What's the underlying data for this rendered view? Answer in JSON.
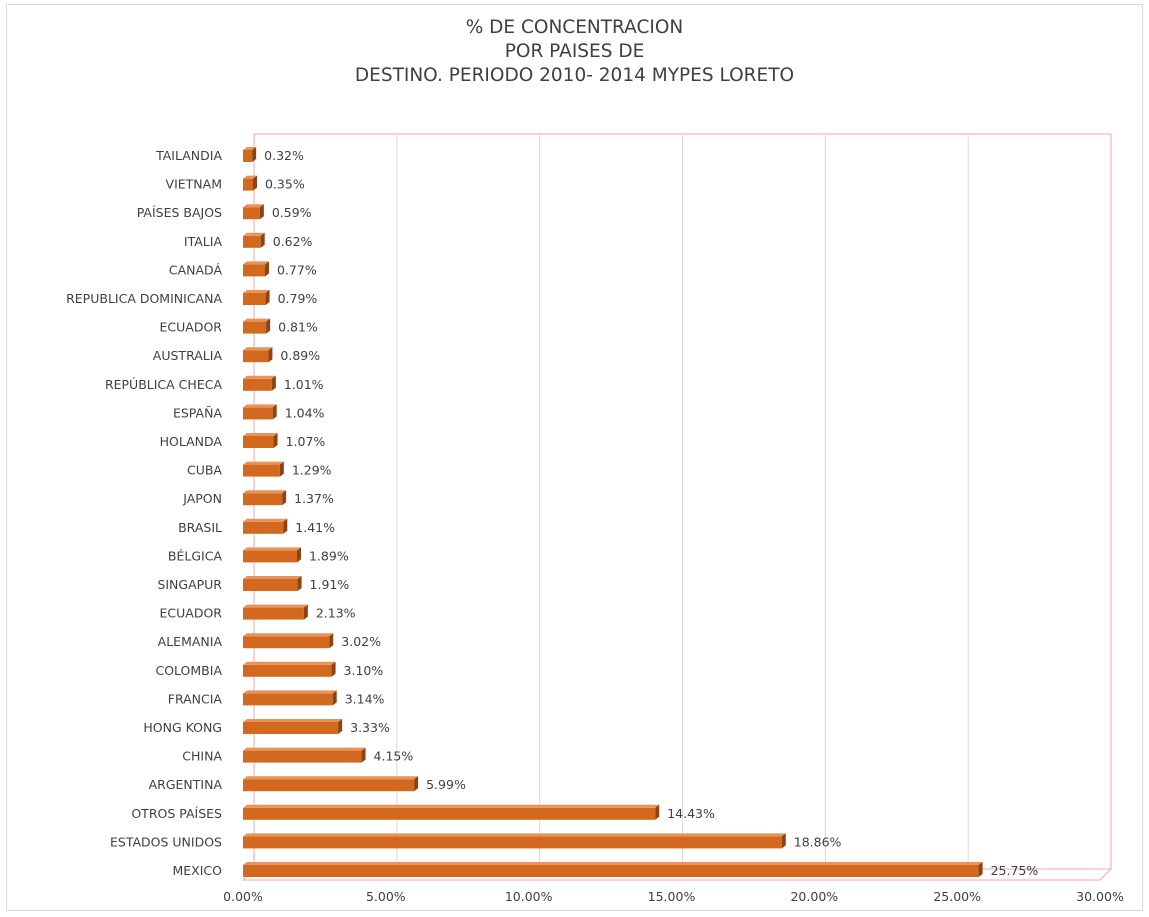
{
  "title_lines": [
    "% DE CONCENTRACION",
    "POR PAISES DE",
    "DESTINO. PERIODO 2010- 2014 MYPES LORETO"
  ],
  "chart_data": {
    "type": "bar",
    "orientation": "horizontal",
    "style": "3d-bar",
    "title": "% DE CONCENTRACION POR PAISES DE DESTINO. PERIODO 2010- 2014 MYPES LORETO",
    "categories": [
      "TAILANDIA",
      "VIETNAM",
      "PAÍSES BAJOS",
      "ITALIA",
      "CANADÁ",
      "REPUBLICA DOMINICANA",
      "ECUADOR",
      "AUSTRALIA",
      "REPÚBLICA CHECA",
      "ESPAÑA",
      "HOLANDA",
      "CUBA",
      "JAPON",
      "BRASIL",
      "BÉLGICA",
      "SINGAPUR",
      "ECUADOR",
      "ALEMANIA",
      "COLOMBIA",
      "FRANCIA",
      "HONG KONG",
      "CHINA",
      "ARGENTINA",
      "OTROS  PAÍSES",
      "ESTADOS UNIDOS",
      "MEXICO"
    ],
    "values": [
      0.32,
      0.35,
      0.59,
      0.62,
      0.77,
      0.79,
      0.81,
      0.89,
      1.01,
      1.04,
      1.07,
      1.29,
      1.37,
      1.41,
      1.89,
      1.91,
      2.13,
      3.02,
      3.1,
      3.14,
      3.33,
      4.15,
      5.99,
      14.43,
      18.86,
      25.75
    ],
    "data_labels": [
      "0.32%",
      "0.35%",
      "0.59%",
      "0.62%",
      "0.77%",
      "0.79%",
      "0.81%",
      "0.89%",
      "1.01%",
      "1.04%",
      "1.07%",
      "1.29%",
      "1.37%",
      "1.41%",
      "1.89%",
      "1.91%",
      "2.13%",
      "3.02%",
      "3.10%",
      "3.14%",
      "3.33%",
      "4.15%",
      "5.99%",
      "14.43%",
      "18.86%",
      "25.75%"
    ],
    "xlim": [
      0,
      30
    ],
    "xticks": [
      0,
      5,
      10,
      15,
      20,
      25,
      30
    ],
    "xtick_labels": [
      "0.00%",
      "5.00%",
      "10.00%",
      "15.00%",
      "20.00%",
      "25.00%",
      "30.00%"
    ],
    "xlabel": "",
    "ylabel": "",
    "grid": true,
    "legend": "none",
    "colors": {
      "bar_front": "#d2691e",
      "bar_top": "#e8935a",
      "bar_side": "#8c4414",
      "grid": "#d9d9d9",
      "plot_border": "#f4a6a6",
      "text": "#404040"
    }
  }
}
